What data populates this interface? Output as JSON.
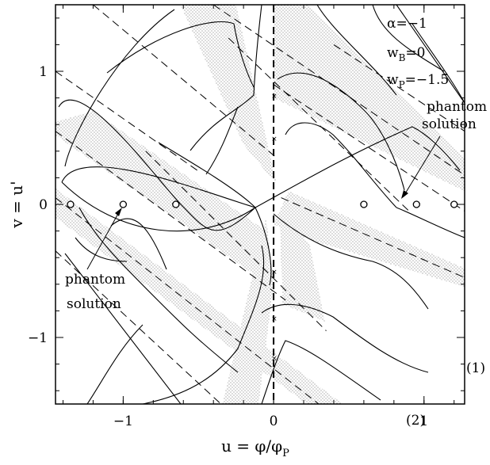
{
  "chart_data": {
    "type": "phase-portrait",
    "title": "",
    "xlabel": "u = φ/φ",
    "xlabel_sub": "P",
    "ylabel": "v = u'",
    "xlim": [
      -1.45,
      1.27
    ],
    "ylim": [
      -1.5,
      1.5
    ],
    "x_ticks": [
      -1,
      0,
      1
    ],
    "x_tick_labels": [
      "−1",
      "0",
      "1"
    ],
    "y_ticks": [
      -1,
      0,
      1
    ],
    "y_tick_labels": [
      "−1",
      "0",
      "1"
    ],
    "parameters": [
      {
        "symbol": "α",
        "sub": "",
        "value": "=−1"
      },
      {
        "symbol": "w",
        "sub": "B",
        "value": "=0"
      },
      {
        "symbol": "w",
        "sub": "P",
        "value": "=−1.5̄"
      }
    ],
    "fixed_points": [
      {
        "u": -1.35,
        "v": 0
      },
      {
        "u": -1.0,
        "v": 0
      },
      {
        "u": -0.65,
        "v": 0
      },
      {
        "u": 0.6,
        "v": 0
      },
      {
        "u": 0.95,
        "v": 0
      },
      {
        "u": 1.2,
        "v": 0
      }
    ],
    "separatrix_u": 0,
    "annotations": [
      {
        "text_lines": [
          "phantom",
          "solution"
        ],
        "points_to": {
          "u": 0.95,
          "v": 0
        }
      },
      {
        "text_lines": [
          "phantom",
          "solution"
        ],
        "points_to": {
          "u": -1.0,
          "v": 0
        }
      }
    ],
    "margin_labels": [
      "(1)",
      "(2)"
    ]
  }
}
